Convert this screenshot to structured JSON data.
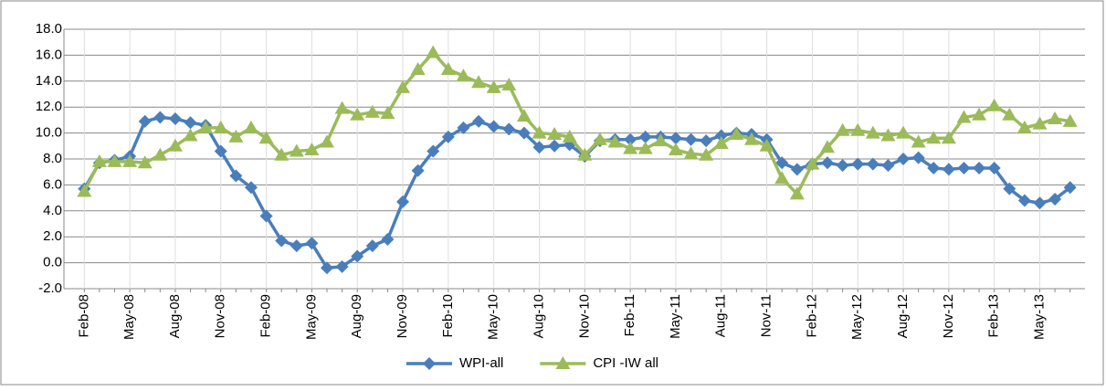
{
  "chart_data": {
    "type": "line",
    "categories": [
      "Feb-08",
      null,
      null,
      "May-08",
      null,
      null,
      "Aug-08",
      null,
      null,
      "Nov-08",
      null,
      null,
      "Feb-09",
      null,
      null,
      "May-09",
      null,
      null,
      "Aug-09",
      null,
      null,
      "Nov-09",
      null,
      null,
      "Feb-10",
      null,
      null,
      "May-10",
      null,
      null,
      "Aug-10",
      null,
      null,
      "Nov-10",
      null,
      null,
      "Feb-11",
      null,
      null,
      "May-11",
      null,
      null,
      "Aug-11",
      null,
      null,
      "Nov-11",
      null,
      null,
      "Feb-12",
      null,
      null,
      "May-12",
      null,
      null,
      "Aug-12",
      null,
      null,
      "Nov-12",
      null,
      null,
      "Feb-13",
      null,
      null,
      "May-13",
      null,
      null
    ],
    "series": [
      {
        "name": "WPI-all",
        "color": "#4a7ebb",
        "marker": "diamond",
        "values": [
          5.7,
          7.7,
          7.9,
          8.2,
          10.9,
          11.2,
          11.1,
          10.8,
          10.6,
          8.6,
          6.7,
          5.8,
          3.6,
          1.7,
          1.3,
          1.5,
          -0.4,
          -0.3,
          0.5,
          1.3,
          1.8,
          4.7,
          7.1,
          8.6,
          9.7,
          10.4,
          10.9,
          10.5,
          10.3,
          10.0,
          8.9,
          9.0,
          9.1,
          8.2,
          9.4,
          9.5,
          9.5,
          9.7,
          9.7,
          9.6,
          9.5,
          9.4,
          9.8,
          10.0,
          9.9,
          9.5,
          7.7,
          7.2,
          7.6,
          7.7,
          7.5,
          7.6,
          7.6,
          7.5,
          8.0,
          8.1,
          7.3,
          7.2,
          7.3,
          7.3,
          7.3,
          5.7,
          4.8,
          4.6,
          4.9,
          5.8
        ]
      },
      {
        "name": "CPI -IW all",
        "color": "#9bbb59",
        "marker": "triangle",
        "values": [
          5.5,
          7.8,
          7.8,
          7.8,
          7.7,
          8.3,
          9.0,
          9.8,
          10.4,
          10.4,
          9.7,
          10.4,
          9.6,
          8.3,
          8.6,
          8.7,
          9.3,
          11.9,
          11.4,
          11.6,
          11.5,
          13.5,
          14.9,
          16.2,
          14.9,
          14.4,
          13.9,
          13.5,
          13.7,
          11.3,
          10.0,
          9.9,
          9.7,
          8.3,
          9.5,
          9.3,
          8.8,
          8.8,
          9.4,
          8.7,
          8.4,
          8.3,
          9.2,
          9.9,
          9.5,
          9.0,
          6.5,
          5.3,
          7.6,
          8.9,
          10.2,
          10.2,
          10.0,
          9.8,
          10.0,
          9.3,
          9.6,
          9.6,
          11.2,
          11.4,
          12.1,
          11.4,
          10.4,
          10.7,
          11.1,
          10.9
        ]
      }
    ],
    "ylim": [
      -2,
      18
    ],
    "yticks": [
      {
        "value": -2,
        "label": "-2.0"
      },
      {
        "value": 0,
        "label": "0.0"
      },
      {
        "value": 2,
        "label": "2.0"
      },
      {
        "value": 4,
        "label": "4.0"
      },
      {
        "value": 6,
        "label": "6.0"
      },
      {
        "value": 8,
        "label": "8.0"
      },
      {
        "value": 10,
        "label": "10.0"
      },
      {
        "value": 12,
        "label": "12.0"
      },
      {
        "value": 14,
        "label": "14.0"
      },
      {
        "value": 16,
        "label": "16.0"
      },
      {
        "value": 18,
        "label": "18.0"
      }
    ],
    "grid": true,
    "legend": "bottom"
  }
}
